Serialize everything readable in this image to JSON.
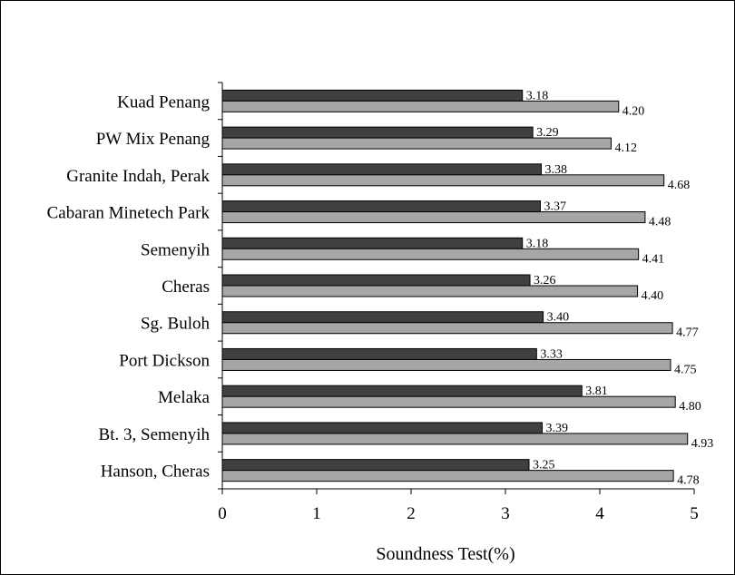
{
  "chart_data": {
    "type": "bar",
    "orientation": "horizontal",
    "categories": [
      "Kuad Penang",
      "PW Mix Penang",
      "Granite Indah, Perak",
      "Cabaran Minetech Park",
      "Semenyih",
      "Cheras",
      "Sg. Buloh",
      "Port Dickson",
      "Melaka",
      "Bt. 3, Semenyih",
      "Hanson, Cheras"
    ],
    "series": [
      {
        "color": "#404040",
        "values": [
          3.18,
          3.29,
          3.38,
          3.37,
          3.18,
          3.26,
          3.4,
          3.33,
          3.81,
          3.39,
          3.25
        ],
        "labels": [
          "3.18",
          "3.29",
          "3.38",
          "3.37",
          "3.18",
          "3.26",
          "3.40",
          "3.33",
          "3.81",
          "3.39",
          "3.25"
        ]
      },
      {
        "color": "#a6a6a6",
        "values": [
          4.2,
          4.12,
          4.68,
          4.48,
          4.41,
          4.4,
          4.77,
          4.75,
          4.8,
          4.93,
          4.78
        ],
        "labels": [
          "4.20",
          "4.12",
          "4.68",
          "4.48",
          "4.41",
          "4.40",
          "4.77",
          "4.75",
          "4.80",
          "4.93",
          "4.78"
        ]
      }
    ],
    "xlabel": "Soundness Test(%)",
    "ylabel": "",
    "xlim": [
      0,
      5
    ],
    "xticks": [
      "0",
      "1",
      "2",
      "3",
      "4",
      "5"
    ],
    "grid": false,
    "legend": "none"
  }
}
